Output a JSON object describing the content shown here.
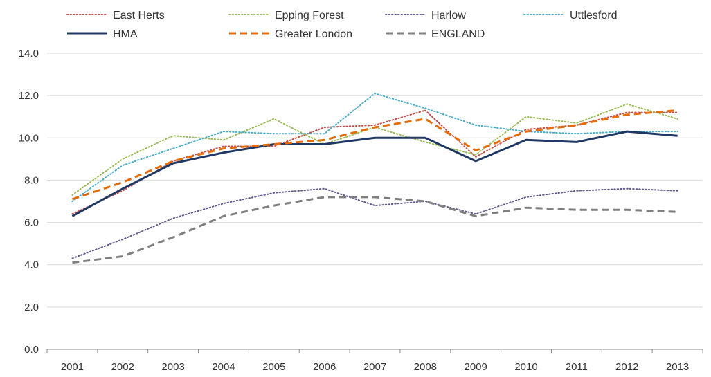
{
  "chart_data": {
    "type": "line",
    "title": "",
    "xlabel": "",
    "ylabel": "",
    "x": [
      2001,
      2002,
      2003,
      2004,
      2005,
      2006,
      2007,
      2008,
      2009,
      2010,
      2011,
      2012,
      2013
    ],
    "x_tick_labels": [
      "2001",
      "2002",
      "2003",
      "2004",
      "2005",
      "2006",
      "2007",
      "2008",
      "2009",
      "2010",
      "2011",
      "2012",
      "2013"
    ],
    "ylim": [
      0,
      14
    ],
    "y_ticks": [
      0,
      2,
      4,
      6,
      8,
      10,
      12,
      14
    ],
    "y_tick_labels": [
      "0.0",
      "2.0",
      "4.0",
      "6.0",
      "8.0",
      "10.0",
      "12.0",
      "14.0"
    ],
    "grid": "horizontal",
    "legend_position": "top",
    "series": [
      {
        "name": "East Herts",
        "color": "#c0504d",
        "style": "dotted",
        "values": [
          6.4,
          7.5,
          8.9,
          9.6,
          9.6,
          10.5,
          10.6,
          11.3,
          9.1,
          10.4,
          10.6,
          11.2,
          11.2
        ]
      },
      {
        "name": "Epping Forest",
        "color": "#9bbb59",
        "style": "dotted",
        "values": [
          7.3,
          9.0,
          10.1,
          9.9,
          10.9,
          9.7,
          10.5,
          9.8,
          9.2,
          11.0,
          10.7,
          11.6,
          10.9
        ]
      },
      {
        "name": "Harlow",
        "color": "#5f5a8a",
        "style": "dotted",
        "values": [
          4.3,
          5.2,
          6.2,
          6.9,
          7.4,
          7.6,
          6.8,
          7.0,
          6.4,
          7.2,
          7.5,
          7.6,
          7.5
        ]
      },
      {
        "name": "Uttlesford",
        "color": "#4bacc6",
        "style": "dotted",
        "values": [
          7.0,
          8.7,
          9.5,
          10.3,
          10.2,
          10.2,
          12.1,
          11.4,
          10.6,
          10.3,
          10.2,
          10.3,
          10.3
        ]
      },
      {
        "name": "HMA",
        "color": "#1f3864",
        "style": "solid",
        "values": [
          6.3,
          7.6,
          8.8,
          9.3,
          9.7,
          9.7,
          10.0,
          10.0,
          8.9,
          9.9,
          9.8,
          10.3,
          10.1
        ]
      },
      {
        "name": "Greater London",
        "color": "#e36c09",
        "style": "dashed",
        "values": [
          7.1,
          7.9,
          8.9,
          9.5,
          9.7,
          9.9,
          10.5,
          10.9,
          9.4,
          10.3,
          10.6,
          11.1,
          11.3
        ]
      },
      {
        "name": "ENGLAND",
        "color": "#7f7f7f",
        "style": "dashed",
        "values": [
          4.1,
          4.4,
          5.3,
          6.3,
          6.8,
          7.2,
          7.2,
          7.0,
          6.3,
          6.7,
          6.6,
          6.6,
          6.5
        ]
      }
    ]
  }
}
